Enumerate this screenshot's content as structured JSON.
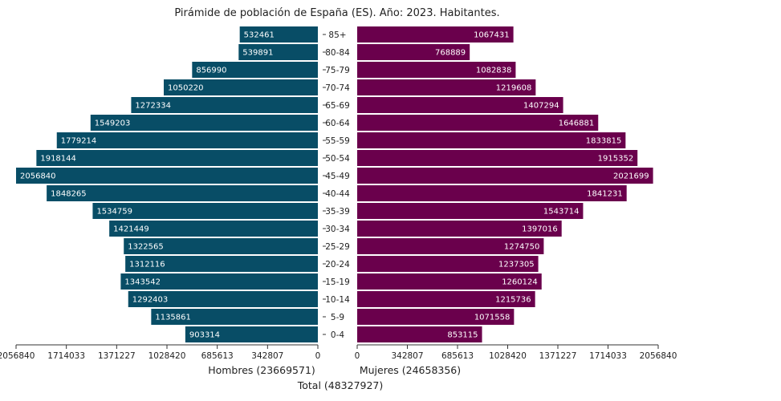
{
  "chart_data": {
    "type": "bar",
    "title": "Pirámide de población de España (ES). Año: 2023. Habitantes.",
    "categories": [
      "85+",
      "80-84",
      "75-79",
      "70-74",
      "65-69",
      "60-64",
      "55-59",
      "50-54",
      "45-49",
      "40-44",
      "35-39",
      "30-34",
      "25-29",
      "20-24",
      "15-19",
      "10-14",
      "5-9",
      "0-4"
    ],
    "series": [
      {
        "name": "Hombres",
        "color": "#084d66",
        "values": [
          532461,
          539891,
          856990,
          1050220,
          1272334,
          1549203,
          1779214,
          1918144,
          2056840,
          1848265,
          1534759,
          1421449,
          1322565,
          1312116,
          1343542,
          1292403,
          1135861,
          903314
        ]
      },
      {
        "name": "Mujeres",
        "color": "#6a004c",
        "values": [
          1067431,
          768889,
          1082838,
          1219608,
          1407294,
          1646881,
          1833815,
          1915352,
          2021699,
          1841231,
          1543714,
          1397016,
          1274750,
          1237305,
          1260124,
          1215736,
          1071558,
          853115
        ]
      }
    ],
    "xticks": [
      0,
      342807,
      685613,
      1028420,
      1371227,
      1714033,
      2056840
    ],
    "xlim": [
      0,
      2056840
    ],
    "xlabel_left": "Hombres (23669571)",
    "xlabel_right": "Mujeres (24658356)",
    "xlabel_total": "Total (48327927)"
  }
}
